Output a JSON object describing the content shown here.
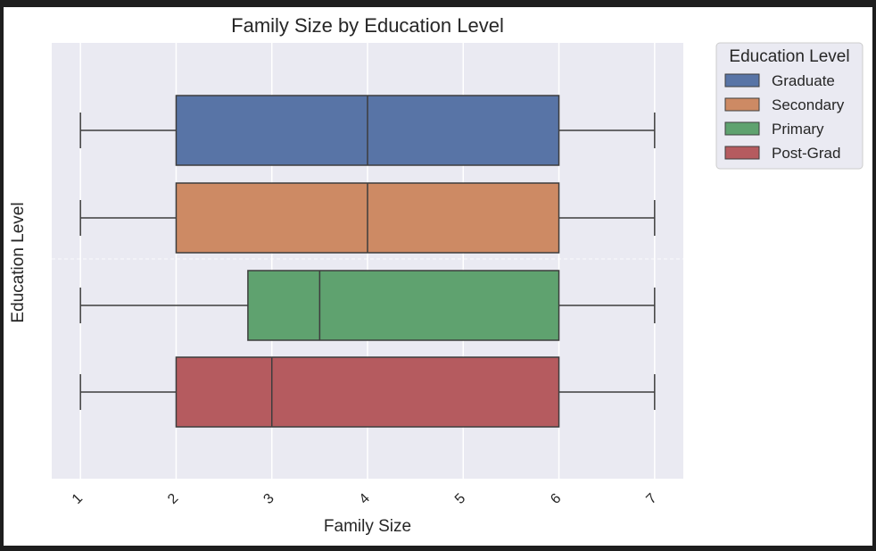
{
  "chart_data": {
    "type": "boxplot",
    "orientation": "horizontal",
    "title": "Family Size by Education Level",
    "xlabel": "Family Size",
    "ylabel": "Education Level",
    "xlim": [
      0.7,
      7.3
    ],
    "xticks": [
      1,
      2,
      3,
      4,
      5,
      6,
      7
    ],
    "xtick_rotation": 45,
    "grid": true,
    "background": "#eaeaf2",
    "legend": {
      "title": "Education Level",
      "placement": "outside-right-top",
      "entries": [
        "Graduate",
        "Secondary",
        "Primary",
        "Post-Grad"
      ]
    },
    "series": [
      {
        "name": "Graduate",
        "color": "#5874a6",
        "min": 1,
        "q1": 2,
        "median": 4,
        "q3": 6,
        "max": 7
      },
      {
        "name": "Secondary",
        "color": "#cd8a64",
        "min": 1,
        "q1": 2,
        "median": 4,
        "q3": 6,
        "max": 7
      },
      {
        "name": "Primary",
        "color": "#5fa26f",
        "min": 1,
        "q1": 2.75,
        "median": 3.5,
        "q3": 6,
        "max": 7
      },
      {
        "name": "Post-Grad",
        "color": "#b55b5f",
        "min": 1,
        "q1": 2,
        "median": 3,
        "q3": 6,
        "max": 7
      }
    ]
  }
}
